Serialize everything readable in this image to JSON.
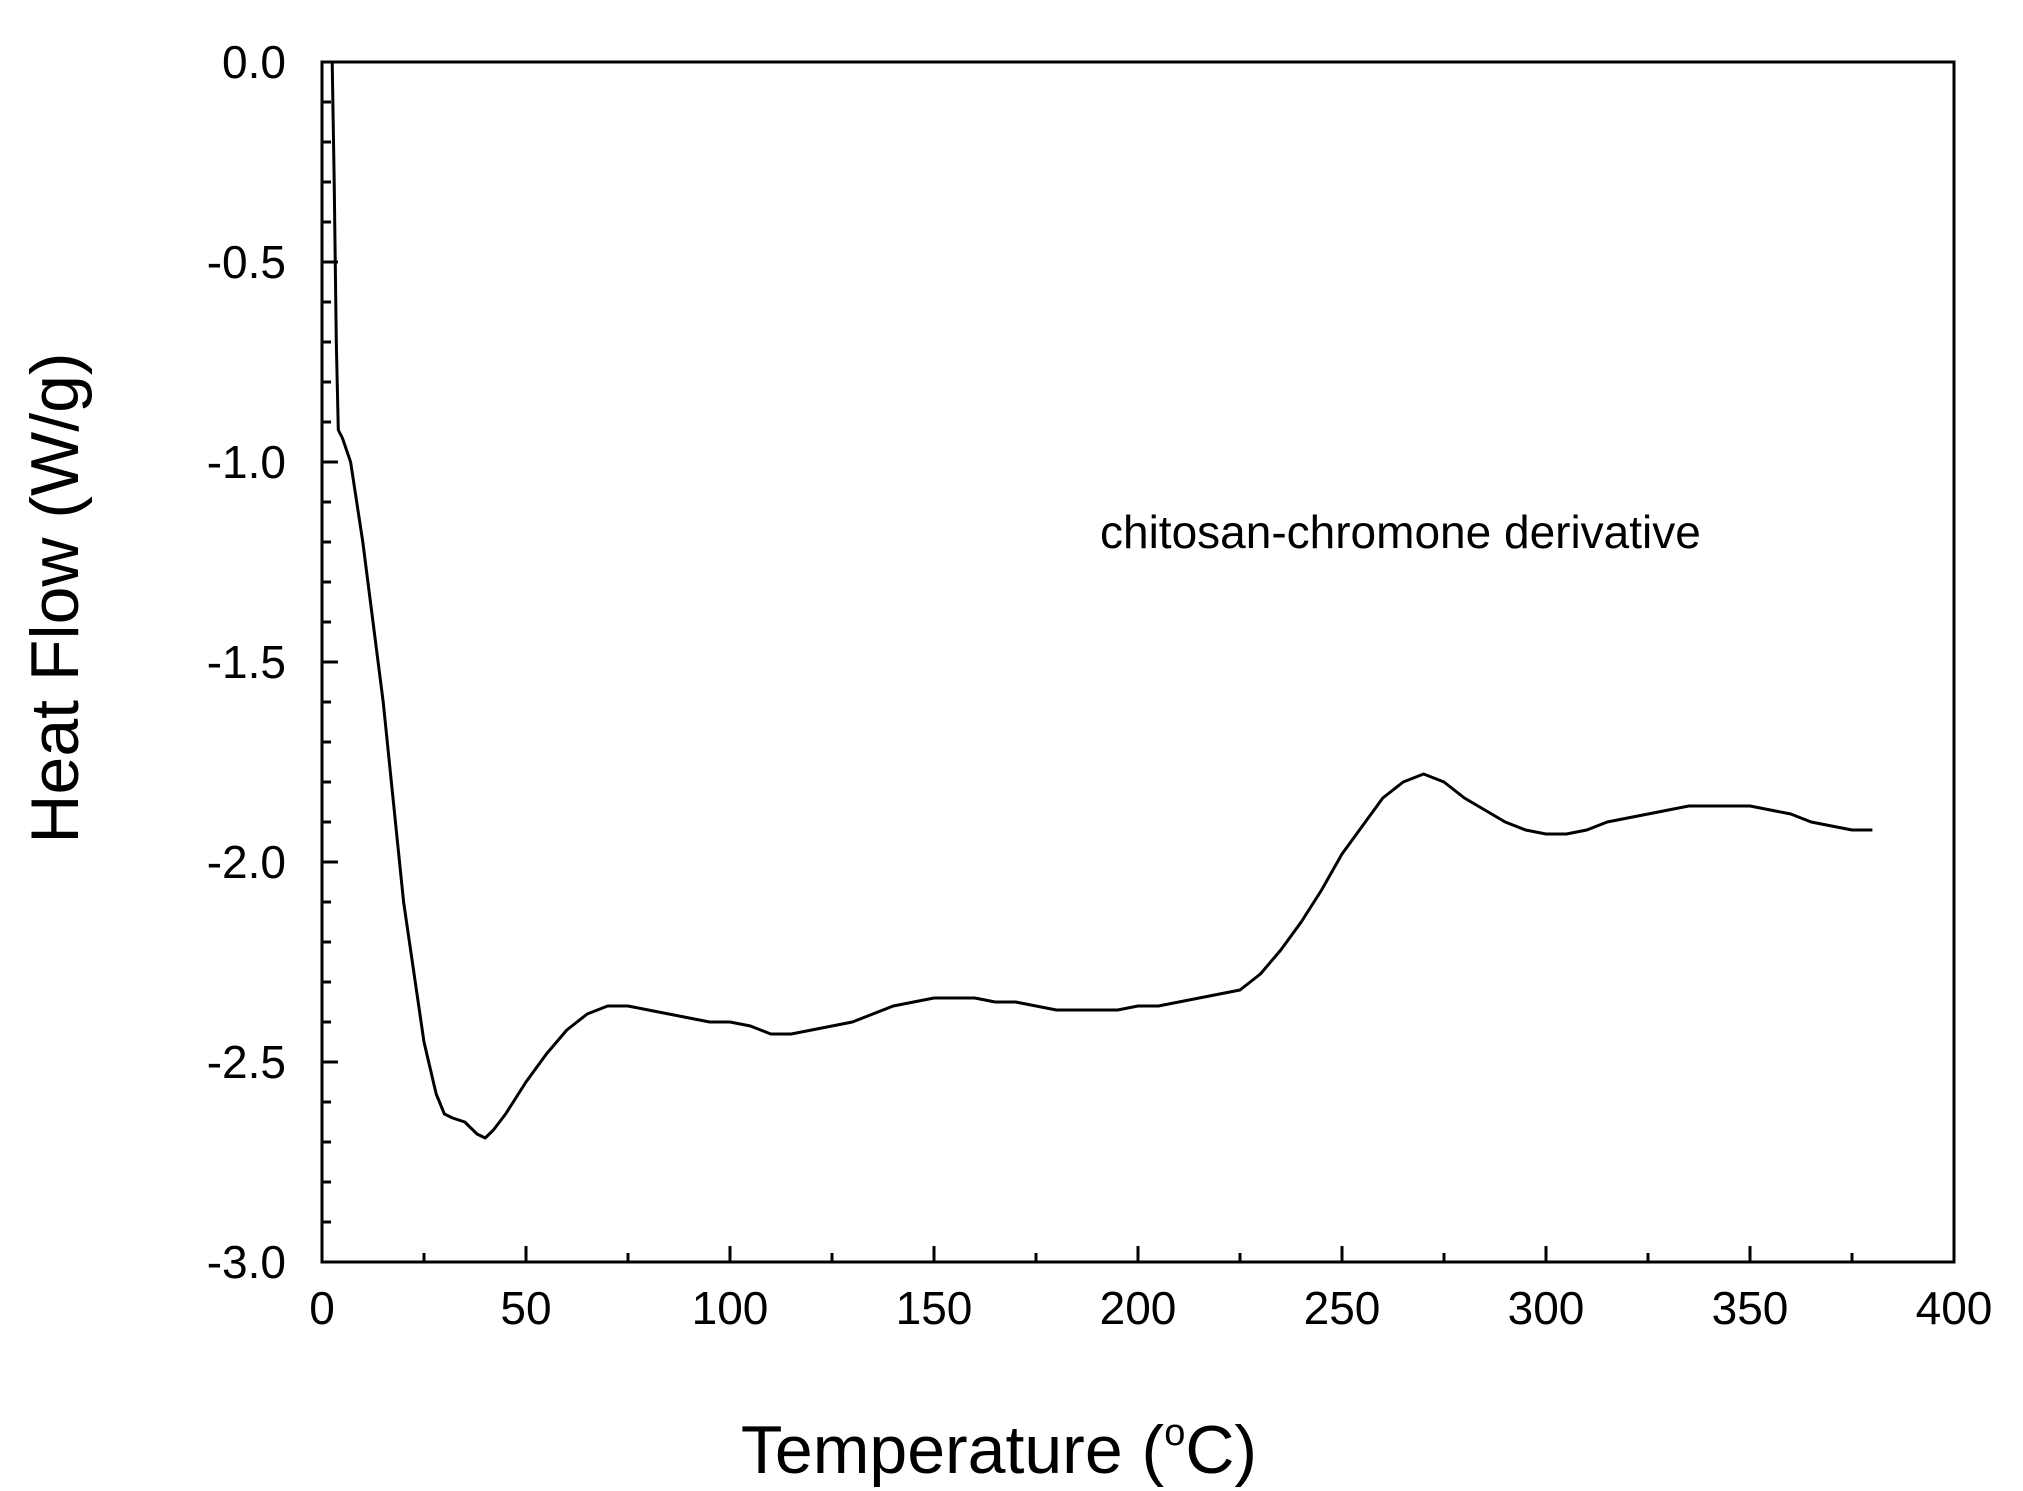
{
  "chart_data": {
    "type": "line",
    "title": "",
    "xlabel": "Temperature (",
    "xlabel_super": "o",
    "xlabel_unit": "C)",
    "ylabel": "Heat Flow (W/g)",
    "xlim": [
      0,
      400
    ],
    "ylim": [
      -3.0,
      0.0
    ],
    "xticks": [
      "0",
      "50",
      "100",
      "150",
      "200",
      "250",
      "300",
      "350",
      "400"
    ],
    "yticks": [
      "0.0",
      "-0.5",
      "-1.0",
      "-1.5",
      "-2.0",
      "-2.5",
      "-3.0"
    ],
    "grid": false,
    "annotation": "chitosan-chromone derivative",
    "series": [
      {
        "x": [
          0.5,
          1.5,
          2.5,
          3.0,
          3.5,
          4.0,
          5,
          7,
          10,
          15,
          20,
          25,
          28,
          30,
          32,
          35,
          38,
          40,
          42,
          45,
          50,
          55,
          60,
          65,
          70,
          75,
          80,
          85,
          90,
          95,
          100,
          105,
          110,
          115,
          120,
          125,
          130,
          135,
          140,
          145,
          150,
          155,
          160,
          165,
          170,
          175,
          180,
          185,
          190,
          195,
          200,
          205,
          210,
          215,
          220,
          225,
          230,
          235,
          240,
          245,
          250,
          255,
          260,
          265,
          270,
          275,
          280,
          285,
          290,
          295,
          300,
          305,
          310,
          315,
          320,
          325,
          330,
          335,
          340,
          345,
          350,
          355,
          360,
          365,
          370,
          375,
          380
        ],
        "values": [
          0.0,
          0.0,
          0.0,
          -0.3,
          -0.7,
          -0.92,
          -0.94,
          -1.0,
          -1.2,
          -1.6,
          -2.1,
          -2.45,
          -2.58,
          -2.63,
          -2.64,
          -2.65,
          -2.68,
          -2.69,
          -2.67,
          -2.63,
          -2.55,
          -2.48,
          -2.42,
          -2.38,
          -2.36,
          -2.36,
          -2.37,
          -2.38,
          -2.39,
          -2.4,
          -2.4,
          -2.41,
          -2.43,
          -2.43,
          -2.42,
          -2.41,
          -2.4,
          -2.38,
          -2.36,
          -2.35,
          -2.34,
          -2.34,
          -2.34,
          -2.35,
          -2.35,
          -2.36,
          -2.37,
          -2.37,
          -2.37,
          -2.37,
          -2.36,
          -2.36,
          -2.35,
          -2.34,
          -2.33,
          -2.32,
          -2.28,
          -2.22,
          -2.15,
          -2.07,
          -1.98,
          -1.91,
          -1.84,
          -1.8,
          -1.78,
          -1.8,
          -1.84,
          -1.87,
          -1.9,
          -1.92,
          -1.93,
          -1.93,
          -1.92,
          -1.9,
          -1.89,
          -1.88,
          -1.87,
          -1.86,
          -1.86,
          -1.86,
          -1.86,
          -1.87,
          -1.88,
          -1.9,
          -1.91,
          -1.92,
          -1.92
        ]
      }
    ]
  }
}
